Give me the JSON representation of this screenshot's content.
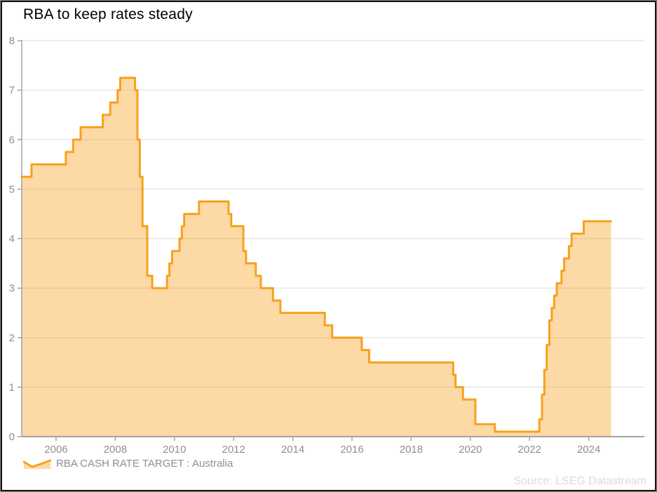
{
  "title": "RBA to keep rates steady",
  "legend": {
    "label": "RBA CASH RATE TARGET : Australia"
  },
  "source": "Source: LSEG Datastream",
  "colors": {
    "line": "#F7A11E",
    "fill": "rgba(247,161,30,0.40)",
    "grid": "#E7E7E7",
    "axis": "#A3A3A3",
    "tick_label": "#8E8E8E",
    "title_text": "#000000",
    "source_text": "#DBDBDB"
  },
  "chart_data": {
    "type": "area",
    "title": "RBA to keep rates steady",
    "step": true,
    "xlabel": "",
    "ylabel": "",
    "xlim": [
      2004.84,
      2025.88
    ],
    "ylim": [
      0,
      8
    ],
    "grid": "horizontal",
    "legend_position": "bottom-left",
    "x_ticks": [
      2006,
      2008,
      2010,
      2012,
      2014,
      2016,
      2018,
      2020,
      2022,
      2024
    ],
    "y_ticks": [
      0,
      1,
      2,
      3,
      4,
      5,
      6,
      7,
      8
    ],
    "series": [
      {
        "name": "RBA CASH RATE TARGET : Australia",
        "unit": "percent",
        "points": [
          [
            2004.84,
            5.25
          ],
          [
            2005.17,
            5.5
          ],
          [
            2006.33,
            5.75
          ],
          [
            2006.58,
            6.0
          ],
          [
            2006.83,
            6.25
          ],
          [
            2007.58,
            6.5
          ],
          [
            2007.83,
            6.75
          ],
          [
            2008.08,
            7.0
          ],
          [
            2008.17,
            7.25
          ],
          [
            2008.67,
            7.0
          ],
          [
            2008.75,
            6.0
          ],
          [
            2008.83,
            5.25
          ],
          [
            2008.92,
            4.25
          ],
          [
            2009.08,
            3.25
          ],
          [
            2009.25,
            3.0
          ],
          [
            2009.75,
            3.25
          ],
          [
            2009.83,
            3.5
          ],
          [
            2009.92,
            3.75
          ],
          [
            2010.17,
            4.0
          ],
          [
            2010.25,
            4.25
          ],
          [
            2010.33,
            4.5
          ],
          [
            2010.83,
            4.75
          ],
          [
            2011.83,
            4.5
          ],
          [
            2011.92,
            4.25
          ],
          [
            2012.33,
            3.75
          ],
          [
            2012.42,
            3.5
          ],
          [
            2012.75,
            3.25
          ],
          [
            2012.92,
            3.0
          ],
          [
            2013.33,
            2.75
          ],
          [
            2013.58,
            2.5
          ],
          [
            2015.08,
            2.25
          ],
          [
            2015.33,
            2.0
          ],
          [
            2016.33,
            1.75
          ],
          [
            2016.58,
            1.5
          ],
          [
            2019.42,
            1.25
          ],
          [
            2019.5,
            1.0
          ],
          [
            2019.75,
            0.75
          ],
          [
            2020.17,
            0.25
          ],
          [
            2020.83,
            0.1
          ],
          [
            2022.33,
            0.35
          ],
          [
            2022.42,
            0.85
          ],
          [
            2022.5,
            1.35
          ],
          [
            2022.58,
            1.85
          ],
          [
            2022.67,
            2.35
          ],
          [
            2022.75,
            2.6
          ],
          [
            2022.83,
            2.85
          ],
          [
            2022.92,
            3.1
          ],
          [
            2023.08,
            3.35
          ],
          [
            2023.17,
            3.6
          ],
          [
            2023.33,
            3.85
          ],
          [
            2023.42,
            4.1
          ],
          [
            2023.83,
            4.35
          ],
          [
            2024.75,
            4.35
          ]
        ]
      }
    ]
  }
}
